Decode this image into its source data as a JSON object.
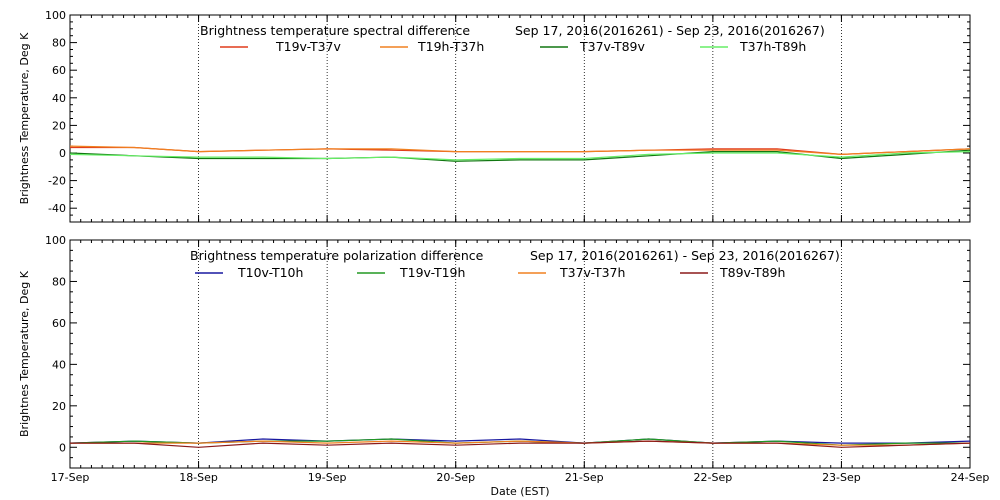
{
  "chart_data": [
    {
      "type": "line",
      "title_left": "Brightness temperature spectral difference",
      "title_right": "Sep 17, 2016(2016261) - Sep 23, 2016(2016267)",
      "ylabel": "Brightness Temperature, Deg K",
      "ylim": [
        -50,
        100
      ],
      "yticks": [
        -40,
        -20,
        0,
        20,
        40,
        60,
        80,
        100
      ],
      "xlim": [
        "2016-09-17",
        "2016-09-24"
      ],
      "x": [
        "2016-09-17",
        "2016-09-17T12",
        "2016-09-18",
        "2016-09-18T12",
        "2016-09-19",
        "2016-09-19T12",
        "2016-09-20",
        "2016-09-20T12",
        "2016-09-21",
        "2016-09-21T12",
        "2016-09-22",
        "2016-09-22T12",
        "2016-09-23",
        "2016-09-23T12",
        "2016-09-24"
      ],
      "series": [
        {
          "name": "T19v-T37v",
          "color": "#e03c1c",
          "values": [
            4,
            4,
            1,
            2,
            3,
            2,
            1,
            1,
            1,
            2,
            3,
            3,
            -1,
            1,
            3
          ]
        },
        {
          "name": "T19h-T37h",
          "color": "#f08020",
          "values": [
            5,
            4,
            1,
            2,
            3,
            3,
            1,
            1,
            1,
            2,
            2,
            2,
            -1,
            1,
            3
          ]
        },
        {
          "name": "T37v-T89v",
          "color": "#117711",
          "values": [
            0,
            -2,
            -4,
            -4,
            -4,
            -3,
            -6,
            -5,
            -5,
            -2,
            1,
            1,
            -4,
            -1,
            2
          ]
        },
        {
          "name": "T37h-T89h",
          "color": "#66ee66",
          "values": [
            -1,
            -2,
            -3,
            -3,
            -4,
            -3,
            -5,
            -4,
            -4,
            -1,
            0,
            0,
            -3,
            0,
            1
          ]
        }
      ]
    },
    {
      "type": "line",
      "title_left": "Brightness temperature polarization difference",
      "title_right": "Sep 17, 2016(2016261) - Sep 23, 2016(2016267)",
      "ylabel": "Brightnes Temperature, Deg K",
      "xlabel": "Date (EST)",
      "ylim": [
        -10,
        100
      ],
      "yticks": [
        0,
        20,
        40,
        60,
        80,
        100
      ],
      "xlim": [
        "2016-09-17",
        "2016-09-24"
      ],
      "x": [
        "2016-09-17",
        "2016-09-17T12",
        "2016-09-18",
        "2016-09-18T12",
        "2016-09-19",
        "2016-09-19T12",
        "2016-09-20",
        "2016-09-20T12",
        "2016-09-21",
        "2016-09-21T12",
        "2016-09-22",
        "2016-09-22T12",
        "2016-09-23",
        "2016-09-23T12",
        "2016-09-24"
      ],
      "xtick_labels": [
        "17-Sep",
        "18-Sep",
        "19-Sep",
        "20-Sep",
        "21-Sep",
        "22-Sep",
        "23-Sep",
        "24-Sep"
      ],
      "series": [
        {
          "name": "T10v-T10h",
          "color": "#1818a0",
          "values": [
            2,
            3,
            2,
            4,
            3,
            4,
            3,
            4,
            2,
            4,
            2,
            3,
            2,
            2,
            3
          ]
        },
        {
          "name": "T19v-T19h",
          "color": "#229922",
          "values": [
            2,
            3,
            2,
            3,
            3,
            4,
            2,
            3,
            2,
            4,
            2,
            3,
            1,
            2,
            2
          ]
        },
        {
          "name": "T37v-T37h",
          "color": "#f08020",
          "values": [
            2,
            2,
            2,
            3,
            2,
            3,
            2,
            3,
            2,
            3,
            2,
            2,
            1,
            1,
            2
          ]
        },
        {
          "name": "T89v-T89h",
          "color": "#8b1a1a",
          "values": [
            2,
            2,
            0,
            2,
            1,
            2,
            1,
            2,
            2,
            3,
            2,
            2,
            0,
            1,
            2
          ]
        }
      ]
    }
  ]
}
